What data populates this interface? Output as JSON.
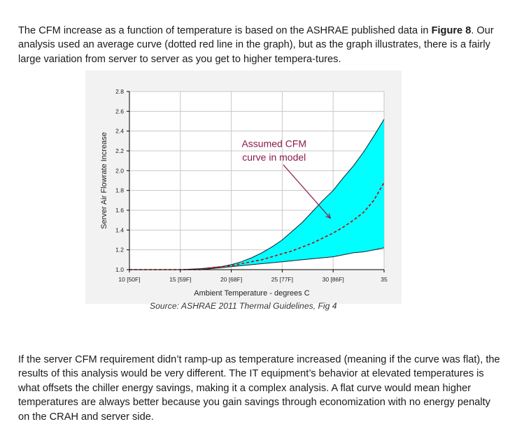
{
  "paragraph1": {
    "text_before": "The CFM increase as a function of temperature is based on the ASHRAE published data in ",
    "bold": "Figure 8",
    "text_after": ".  Our analysis used an average curve (dotted red line in the graph), but as the graph illustrates, there is a fairly large variation from server to server as you get to higher tempera-tures."
  },
  "figure_caption": "Source: ASHRAE  2011 Thermal Guidelines, Fig 4",
  "paragraph2": "If the server CFM requirement didn’t ramp-up as temperature increased (meaning if the curve was flat), the results of this analysis would be very different.  The IT equipment’s behavior at elevated temperatures is what offsets the chiller energy savings, making it a complex analysis.  A flat curve would mean higher temperatures are always better because you gain savings through economization with no energy penalty on the CRAH and server side.",
  "chart_data": {
    "type": "area",
    "title": "",
    "xlabel": "Ambient Temperature - degrees C",
    "ylabel": "Server Air Flowrate Increase",
    "xlim": [
      10,
      35
    ],
    "ylim": [
      1.0,
      2.8
    ],
    "x_ticks": [
      10,
      15,
      20,
      25,
      30,
      35
    ],
    "x_tick_labels": [
      "10 [50F]",
      "15 [59F]",
      "20 [68F]",
      "25 [77F]",
      "30 [86F]",
      "35"
    ],
    "y_ticks": [
      1.0,
      1.2,
      1.4,
      1.6,
      1.8,
      2.0,
      2.2,
      2.4,
      2.6,
      2.8
    ],
    "y_tick_labels": [
      "1.0",
      "1.2",
      "1.4",
      "1.6",
      "1.8",
      "2.0",
      "2.2",
      "2.4",
      "2.6",
      "2.8"
    ],
    "grid": true,
    "fill_color": "#00ffff",
    "avg_line_color": "#cc0000",
    "annotation_color": "#8b1a4a",
    "band_x": [
      10,
      13,
      15,
      17,
      18,
      19,
      20,
      21,
      22,
      23,
      24,
      25,
      26,
      27,
      28,
      29,
      30,
      31,
      32,
      33,
      34,
      35
    ],
    "band_lower": [
      1.0,
      1.0,
      1.0,
      1.0,
      1.01,
      1.02,
      1.03,
      1.04,
      1.05,
      1.06,
      1.07,
      1.08,
      1.09,
      1.1,
      1.11,
      1.12,
      1.13,
      1.15,
      1.17,
      1.18,
      1.2,
      1.22
    ],
    "band_upper": [
      1.0,
      1.0,
      1.0,
      1.01,
      1.02,
      1.03,
      1.05,
      1.08,
      1.12,
      1.17,
      1.23,
      1.3,
      1.39,
      1.48,
      1.59,
      1.7,
      1.8,
      1.93,
      2.05,
      2.19,
      2.35,
      2.52
    ],
    "series": [
      {
        "x": [
          10,
          17,
          18,
          19,
          20,
          21,
          22,
          23,
          24,
          25,
          26,
          27,
          28,
          29,
          30,
          31,
          32,
          33,
          34,
          35
        ],
        "values": [
          1.0,
          1.0,
          1.02,
          1.03,
          1.04,
          1.06,
          1.08,
          1.1,
          1.13,
          1.16,
          1.19,
          1.23,
          1.27,
          1.32,
          1.37,
          1.43,
          1.5,
          1.58,
          1.7,
          1.88
        ]
      }
    ],
    "annotation": {
      "line1": "Assumed CFM",
      "line2": "curve in model",
      "arrow_to": [
        30,
        1.52
      ]
    }
  }
}
